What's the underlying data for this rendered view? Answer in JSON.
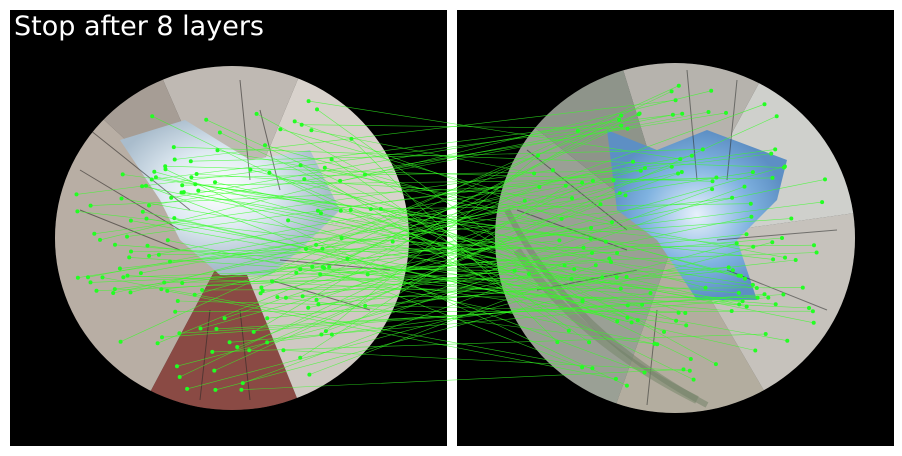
{
  "title": "Stop after 8 layers",
  "colors": {
    "background": "#ffffff",
    "panel": "#000000",
    "match_line": "#33ff22",
    "keypoint": "#22ff22",
    "sky": "#dfeaf2",
    "sky_blue": "#7fb2e0",
    "building_light": "#c9c3bd",
    "building_dark": "#5a5550",
    "building_red": "#8a4a44"
  },
  "images": [
    {
      "name": "left-fisheye-image",
      "description_icon": "fisheye-street-photo"
    },
    {
      "name": "right-fisheye-image",
      "description_icon": "fisheye-street-photo"
    }
  ],
  "matches_shown": 140
}
